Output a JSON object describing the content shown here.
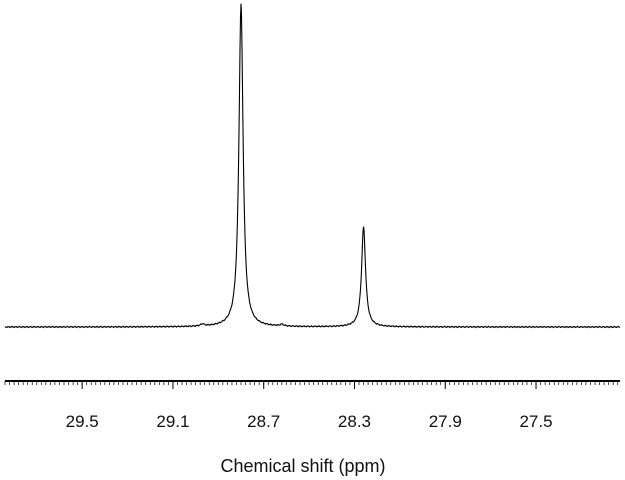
{
  "chart_data": {
    "type": "line",
    "xlabel": "Chemical shift (ppm)",
    "ylabel": "",
    "x_reversed": true,
    "xlim": [
      29.84,
      27.13
    ],
    "x_ticks": [
      "29.5",
      "29.1",
      "28.7",
      "28.3",
      "27.9",
      "27.5"
    ],
    "minor_tick_step": 0.02,
    "grid": false,
    "legend": "none",
    "line_color": "#000000",
    "series": [
      {
        "baseline": 0.0,
        "peaks": [
          {
            "center": 28.8,
            "height": 1.0,
            "width": 0.022
          },
          {
            "center": 28.26,
            "height": 0.31,
            "width": 0.021
          },
          {
            "center": 28.97,
            "height": 0.006,
            "width": 0.02
          },
          {
            "center": 28.62,
            "height": 0.005,
            "width": 0.02
          }
        ]
      }
    ]
  }
}
